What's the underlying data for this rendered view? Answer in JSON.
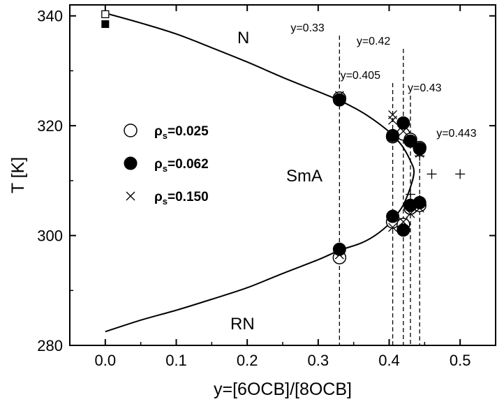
{
  "chart_data": {
    "type": "scatter",
    "xlabel": "y=[6OCB]/[8OCB]",
    "ylabel": "T [K]",
    "xlim": [
      -0.05,
      0.55
    ],
    "ylim": [
      280,
      342
    ],
    "x_ticks": [
      "0.0",
      "0.1",
      "0.2",
      "0.3",
      "0.4",
      "0.5"
    ],
    "y_ticks": [
      "280",
      "300",
      "320",
      "340"
    ],
    "regions": [
      "N",
      "SmA",
      "RN"
    ],
    "legend": {
      "position": "center-left",
      "entries": [
        {
          "symbol": "open-circle",
          "rho": "ρ",
          "sub": "s",
          "value": "=0.025"
        },
        {
          "symbol": "filled-circle",
          "rho": "ρ",
          "sub": "s",
          "value": "=0.062"
        },
        {
          "symbol": "cross",
          "rho": "ρ",
          "sub": "s",
          "value": "=0.150"
        }
      ]
    },
    "vertical_lines": [
      {
        "x": 0.33,
        "label": "y=0.33"
      },
      {
        "x": 0.405,
        "label": "y=0.405"
      },
      {
        "x": 0.42,
        "label": "y=0.42"
      },
      {
        "x": 0.43,
        "label": "y=0.43"
      },
      {
        "x": 0.443,
        "label": "y=0.443"
      }
    ],
    "boundary_curve": {
      "style": "solid",
      "points": [
        [
          0.0,
          340.5
        ],
        [
          0.05,
          338.7
        ],
        [
          0.1,
          336.7
        ],
        [
          0.15,
          334.2
        ],
        [
          0.2,
          331.6
        ],
        [
          0.25,
          328.8
        ],
        [
          0.3,
          326.2
        ],
        [
          0.33,
          324.6
        ],
        [
          0.36,
          322.6
        ],
        [
          0.38,
          320.9
        ],
        [
          0.4,
          318.9
        ],
        [
          0.41,
          317.6
        ],
        [
          0.42,
          316.0
        ],
        [
          0.43,
          313.6
        ],
        [
          0.435,
          311.6
        ],
        [
          0.43,
          308.8
        ],
        [
          0.42,
          305.6
        ],
        [
          0.41,
          303.7
        ],
        [
          0.4,
          302.1
        ],
        [
          0.38,
          300.0
        ],
        [
          0.36,
          298.6
        ],
        [
          0.33,
          297.3
        ],
        [
          0.3,
          295.6
        ],
        [
          0.25,
          293.1
        ],
        [
          0.2,
          290.5
        ],
        [
          0.15,
          288.4
        ],
        [
          0.1,
          286.4
        ],
        [
          0.05,
          284.6
        ],
        [
          0.0,
          282.5
        ]
      ]
    },
    "series": [
      {
        "name": "ρs=0.025",
        "marker": "open-circle",
        "points": [
          [
            0.33,
            325.0
          ],
          [
            0.33,
            296.0
          ],
          [
            0.405,
            318.0
          ],
          [
            0.405,
            302.5
          ],
          [
            0.42,
            318.5
          ],
          [
            0.42,
            302.0
          ],
          [
            0.43,
            317.5
          ],
          [
            0.43,
            305.0
          ],
          [
            0.443,
            316.0
          ],
          [
            0.443,
            305.5
          ]
        ]
      },
      {
        "name": "ρs=0.062",
        "marker": "filled-circle",
        "points": [
          [
            0.33,
            324.7
          ],
          [
            0.33,
            297.5
          ],
          [
            0.405,
            318.2
          ],
          [
            0.405,
            303.5
          ],
          [
            0.42,
            320.5
          ],
          [
            0.42,
            301.0
          ],
          [
            0.43,
            317.2
          ],
          [
            0.43,
            305.5
          ],
          [
            0.443,
            315.8
          ],
          [
            0.443,
            306.0
          ]
        ]
      },
      {
        "name": "ρs=0.150",
        "marker": "cross",
        "points": [
          [
            0.33,
            325.5
          ],
          [
            0.33,
            296.5
          ],
          [
            0.405,
            322.0
          ],
          [
            0.405,
            321.0
          ],
          [
            0.405,
            301.5
          ],
          [
            0.42,
            319.0
          ],
          [
            0.42,
            302.5
          ],
          [
            0.43,
            317.0
          ],
          [
            0.43,
            304.0
          ],
          [
            0.443,
            315.0
          ],
          [
            0.443,
            305.0
          ]
        ]
      }
    ],
    "plus_points": [
      [
        0.33,
        296.5
      ],
      [
        0.405,
        302.0
      ],
      [
        0.42,
        302.5
      ],
      [
        0.43,
        304.5
      ],
      [
        0.43,
        307.5
      ],
      [
        0.443,
        306.5
      ],
      [
        0.443,
        314.5
      ],
      [
        0.46,
        311.2
      ],
      [
        0.5,
        311.2
      ]
    ],
    "pure_component_points": [
      {
        "x": 0.0,
        "y": 340.3,
        "marker": "open-square"
      },
      {
        "x": 0.0,
        "y": 338.5,
        "marker": "filled-square"
      }
    ]
  }
}
